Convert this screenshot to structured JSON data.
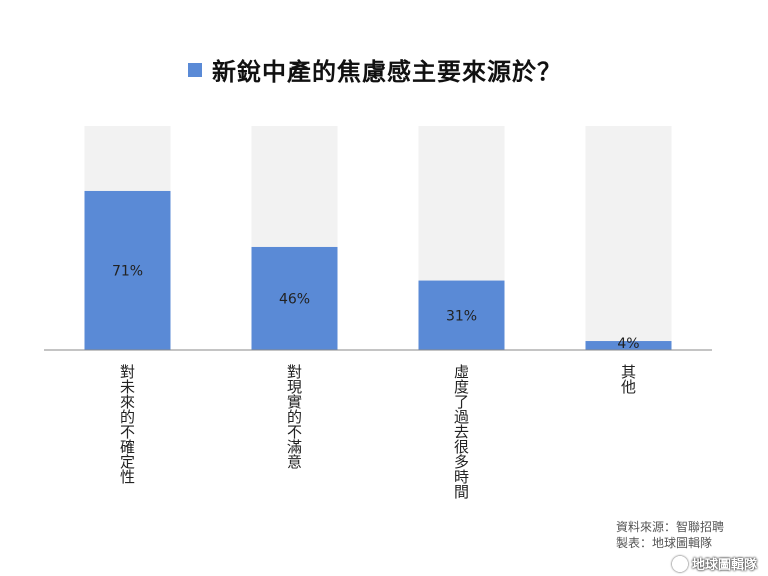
{
  "legend": {
    "label": "新銳中產的焦慮感主要來源於？",
    "color": "#5a8ad6"
  },
  "source_lines": [
    "資料來源：智聯招聘",
    "製表：地球圖輯隊"
  ],
  "watermark": "地球圖輯隊",
  "chart_data": {
    "type": "bar",
    "title": "新銳中產的焦慮感主要來源於？",
    "categories": [
      "對未來的不確定性",
      "對現實的不滿意",
      "虛度了過去很多時間",
      "其他"
    ],
    "series": [
      {
        "name": "新銳中產的焦慮感主要來源於？",
        "values": [
          71,
          46,
          31,
          4
        ]
      }
    ],
    "data_labels": [
      "71%",
      "46%",
      "31%",
      "4%"
    ],
    "ylim": [
      0,
      100
    ],
    "xlabel": "",
    "ylabel": "",
    "grid": false,
    "legend_position": "top",
    "bar_color": "#5a8ad6",
    "background_bar_color": "#f2f2f2"
  }
}
